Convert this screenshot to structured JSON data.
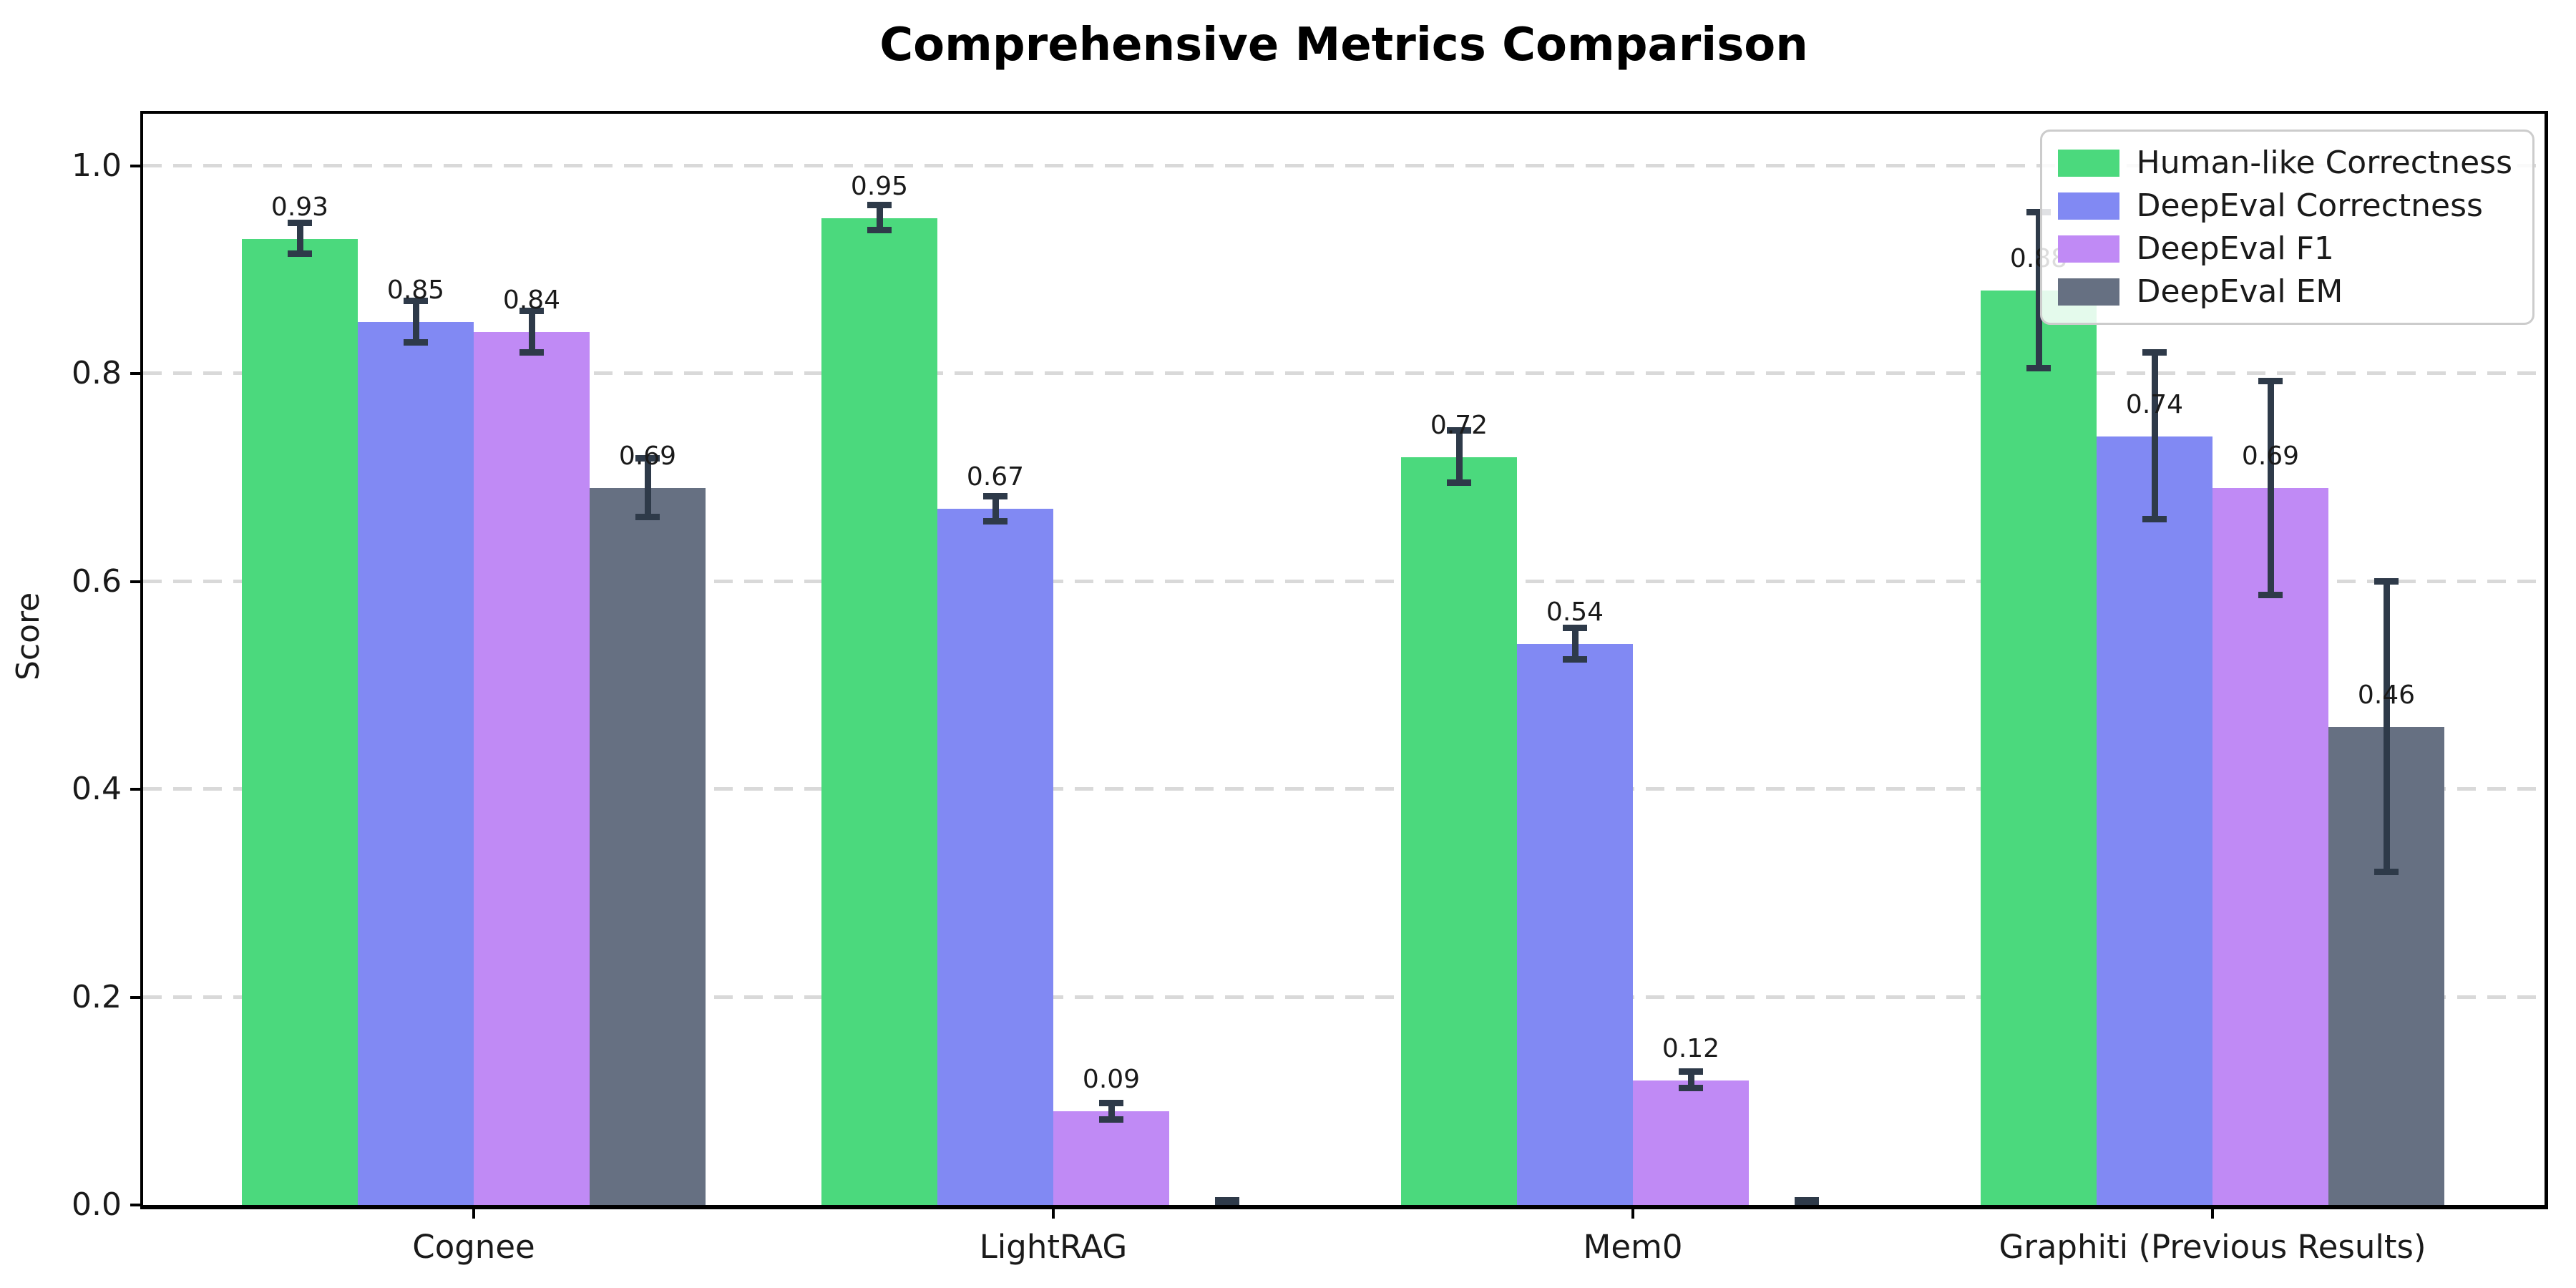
{
  "chart_data": {
    "type": "bar",
    "title": "Comprehensive Metrics Comparison",
    "xlabel": "",
    "ylabel": "Score",
    "categories": [
      "Cognee",
      "LightRAG",
      "Mem0",
      "Graphiti (Previous Results)"
    ],
    "series": [
      {
        "name": "Human-like Correctness",
        "color": "#4bd97d",
        "values": [
          0.93,
          0.95,
          0.72,
          0.88
        ],
        "errors": [
          0.015,
          0.012,
          0.025,
          0.075
        ],
        "labels": [
          "0.93",
          "0.95",
          "0.72",
          "0.88"
        ]
      },
      {
        "name": "DeepEval Correctness",
        "color": "#8189f3",
        "values": [
          0.85,
          0.67,
          0.54,
          0.74
        ],
        "errors": [
          0.02,
          0.012,
          0.015,
          0.08
        ],
        "labels": [
          "0.85",
          "0.67",
          "0.54",
          "0.74"
        ]
      },
      {
        "name": "DeepEval F1",
        "color": "#c08af5",
        "values": [
          0.84,
          0.09,
          0.12,
          0.69
        ],
        "errors": [
          0.02,
          0.008,
          0.008,
          0.103
        ],
        "labels": [
          "0.84",
          "0.09",
          "0.12",
          "0.69"
        ]
      },
      {
        "name": "DeepEval EM",
        "color": "#667082",
        "values": [
          0.69,
          0.0,
          0.0,
          0.46
        ],
        "errors": [
          0.028,
          0.004,
          0.004,
          0.14
        ],
        "labels": [
          "0.69",
          null,
          null,
          "0.46"
        ]
      }
    ],
    "ylim": [
      0.0,
      1.05
    ],
    "yticks": [
      0.0,
      0.2,
      0.4,
      0.6,
      0.8,
      1.0
    ],
    "ytick_labels": [
      "0.0",
      "0.2",
      "0.4",
      "0.6",
      "0.8",
      "1.0"
    ],
    "grid": "horizontal-dashed",
    "gridline_color": "#d9d9d9",
    "error_bar_color": "#2e3a49",
    "legend_position": "upper-right",
    "background_color": "#ffffff"
  }
}
